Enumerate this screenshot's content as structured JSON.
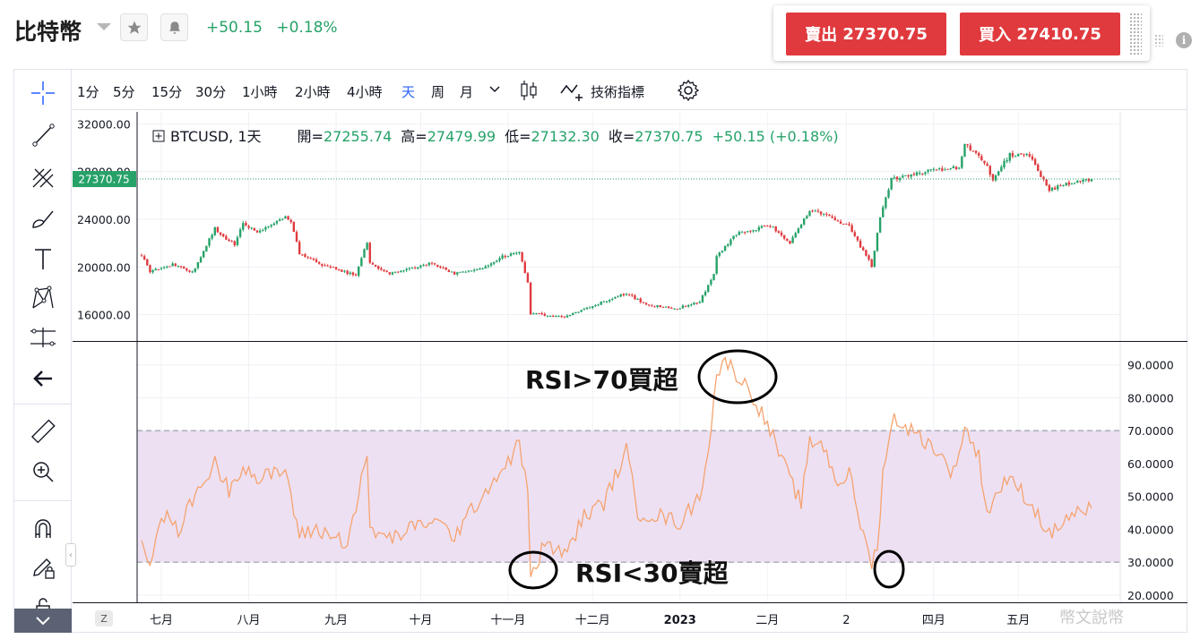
{
  "header": {
    "symbol_name": "比特幣",
    "change": "+50.15",
    "change_pct": "+0.18%",
    "sell_label": "賣出",
    "sell_price": "27370.75",
    "buy_label": "買入",
    "buy_price": "27410.75"
  },
  "toolbar": {
    "timeframes": [
      "1分",
      "5分",
      "15分",
      "30分",
      "1小時",
      "2小時",
      "4小時",
      "天",
      "周",
      "月"
    ],
    "active_timeframe": "天",
    "indicators_label": "技術指標"
  },
  "legend": {
    "symbol": "BTCUSD, 1天",
    "open_label": "開=",
    "open": "27255.74",
    "high_label": "高=",
    "high": "27479.99",
    "low_label": "低=",
    "low": "27132.30",
    "close_label": "收=",
    "close": "27370.75",
    "change": "+50.15 (+0.18%)"
  },
  "annotations": {
    "overbought": "RSI>70買超",
    "oversold": "RSI<30賣超"
  },
  "watermark": "幣文說幣",
  "colors": {
    "up": "#26a269",
    "down": "#e03a3e",
    "rsi_line": "#f5a370",
    "rsi_band": "#ede0f2",
    "price_tag": "#26a269"
  },
  "chart_data": [
    {
      "type": "candlestick",
      "title": "BTCUSD, 1天",
      "yticks": [
        "32000.00",
        "28000.00",
        "24000.00",
        "20000.00",
        "16000.00"
      ],
      "ylim": [
        13800,
        33000
      ],
      "last_price": "27370.75",
      "xticks": [
        "七月",
        "八月",
        "九月",
        "十月",
        "十一月",
        "十二月",
        "2023",
        "二月",
        "2",
        "四月",
        "五月"
      ],
      "x_range": [
        "2022-06-24",
        "2023-05-27"
      ],
      "close_waypoints": [
        [
          "2022-06-24",
          21000
        ],
        [
          "2022-06-27",
          19600
        ],
        [
          "2022-07-05",
          20200
        ],
        [
          "2022-07-12",
          19500
        ],
        [
          "2022-07-20",
          23200
        ],
        [
          "2022-07-27",
          21800
        ],
        [
          "2022-07-30",
          23800
        ],
        [
          "2022-08-04",
          22800
        ],
        [
          "2022-08-14",
          24300
        ],
        [
          "2022-08-16",
          23900
        ],
        [
          "2022-08-19",
          21200
        ],
        [
          "2022-08-28",
          20100
        ],
        [
          "2022-09-08",
          19300
        ],
        [
          "2022-09-12",
          22100
        ],
        [
          "2022-09-13",
          20300
        ],
        [
          "2022-09-20",
          19400
        ],
        [
          "2022-10-05",
          20300
        ],
        [
          "2022-10-13",
          19400
        ],
        [
          "2022-10-25",
          20100
        ],
        [
          "2022-10-29",
          20800
        ],
        [
          "2022-11-05",
          21200
        ],
        [
          "2022-11-08",
          18700
        ],
        [
          "2022-11-09",
          16100
        ],
        [
          "2022-11-21",
          15800
        ],
        [
          "2022-12-05",
          17100
        ],
        [
          "2022-12-13",
          17800
        ],
        [
          "2022-12-20",
          16800
        ],
        [
          "2022-12-31",
          16550
        ],
        [
          "2023-01-08",
          17100
        ],
        [
          "2023-01-13",
          19400
        ],
        [
          "2023-01-14",
          20900
        ],
        [
          "2023-01-21",
          22800
        ],
        [
          "2023-02-02",
          23500
        ],
        [
          "2023-02-09",
          22000
        ],
        [
          "2023-02-16",
          24800
        ],
        [
          "2023-02-20",
          24500
        ],
        [
          "2023-03-02",
          23400
        ],
        [
          "2023-03-10",
          20100
        ],
        [
          "2023-03-13",
          24200
        ],
        [
          "2023-03-17",
          27400
        ],
        [
          "2023-03-24",
          27800
        ],
        [
          "2023-04-10",
          28400
        ],
        [
          "2023-04-12",
          30300
        ],
        [
          "2023-04-19",
          28800
        ],
        [
          "2023-04-22",
          27400
        ],
        [
          "2023-04-28",
          29400
        ],
        [
          "2023-05-05",
          29300
        ],
        [
          "2023-05-09",
          27600
        ],
        [
          "2023-05-12",
          26500
        ],
        [
          "2023-05-19",
          27000
        ],
        [
          "2023-05-27",
          27370
        ]
      ]
    },
    {
      "type": "line",
      "title": "RSI",
      "yticks": [
        "90.0000",
        "80.0000",
        "70.0000",
        "60.0000",
        "50.0000",
        "40.0000",
        "30.0000",
        "20.0000"
      ],
      "ylim": [
        17.5,
        97
      ],
      "overbought_level": 70,
      "oversold_level": 30,
      "waypoints": [
        [
          "2022-06-24",
          36
        ],
        [
          "2022-06-27",
          31
        ],
        [
          "2022-07-02",
          44
        ],
        [
          "2022-07-07",
          40
        ],
        [
          "2022-07-14",
          52
        ],
        [
          "2022-07-20",
          60
        ],
        [
          "2022-07-25",
          52
        ],
        [
          "2022-07-30",
          60
        ],
        [
          "2022-08-04",
          55
        ],
        [
          "2022-08-14",
          58
        ],
        [
          "2022-08-19",
          38
        ],
        [
          "2022-08-25",
          40
        ],
        [
          "2022-09-05",
          36
        ],
        [
          "2022-09-12",
          62
        ],
        [
          "2022-09-13",
          40
        ],
        [
          "2022-09-20",
          37
        ],
        [
          "2022-10-05",
          43
        ],
        [
          "2022-10-13",
          38
        ],
        [
          "2022-10-25",
          53
        ],
        [
          "2022-10-30",
          58
        ],
        [
          "2022-11-05",
          66
        ],
        [
          "2022-11-08",
          52
        ],
        [
          "2022-11-09",
          24
        ],
        [
          "2022-11-14",
          36
        ],
        [
          "2022-11-21",
          32
        ],
        [
          "2022-11-28",
          44
        ],
        [
          "2022-12-05",
          48
        ],
        [
          "2022-12-13",
          64
        ],
        [
          "2022-12-17",
          45
        ],
        [
          "2022-12-25",
          44
        ],
        [
          "2023-01-01",
          42
        ],
        [
          "2023-01-08",
          50
        ],
        [
          "2023-01-12",
          70
        ],
        [
          "2023-01-14",
          88
        ],
        [
          "2023-01-18",
          91
        ],
        [
          "2023-01-22",
          86
        ],
        [
          "2023-01-26",
          82
        ],
        [
          "2023-02-02",
          70
        ],
        [
          "2023-02-09",
          55
        ],
        [
          "2023-02-13",
          48
        ],
        [
          "2023-02-16",
          66
        ],
        [
          "2023-02-20",
          67
        ],
        [
          "2023-02-26",
          54
        ],
        [
          "2023-03-02",
          57
        ],
        [
          "2023-03-07",
          38
        ],
        [
          "2023-03-10",
          30
        ],
        [
          "2023-03-12",
          34
        ],
        [
          "2023-03-14",
          58
        ],
        [
          "2023-03-18",
          74
        ],
        [
          "2023-03-24",
          70
        ],
        [
          "2023-04-01",
          65
        ],
        [
          "2023-04-08",
          57
        ],
        [
          "2023-04-12",
          71
        ],
        [
          "2023-04-17",
          62
        ],
        [
          "2023-04-20",
          45
        ],
        [
          "2023-04-26",
          55
        ],
        [
          "2023-05-01",
          53
        ],
        [
          "2023-05-06",
          47
        ],
        [
          "2023-05-09",
          43
        ],
        [
          "2023-05-12",
          38
        ],
        [
          "2023-05-19",
          44
        ],
        [
          "2023-05-27",
          46
        ]
      ]
    }
  ]
}
